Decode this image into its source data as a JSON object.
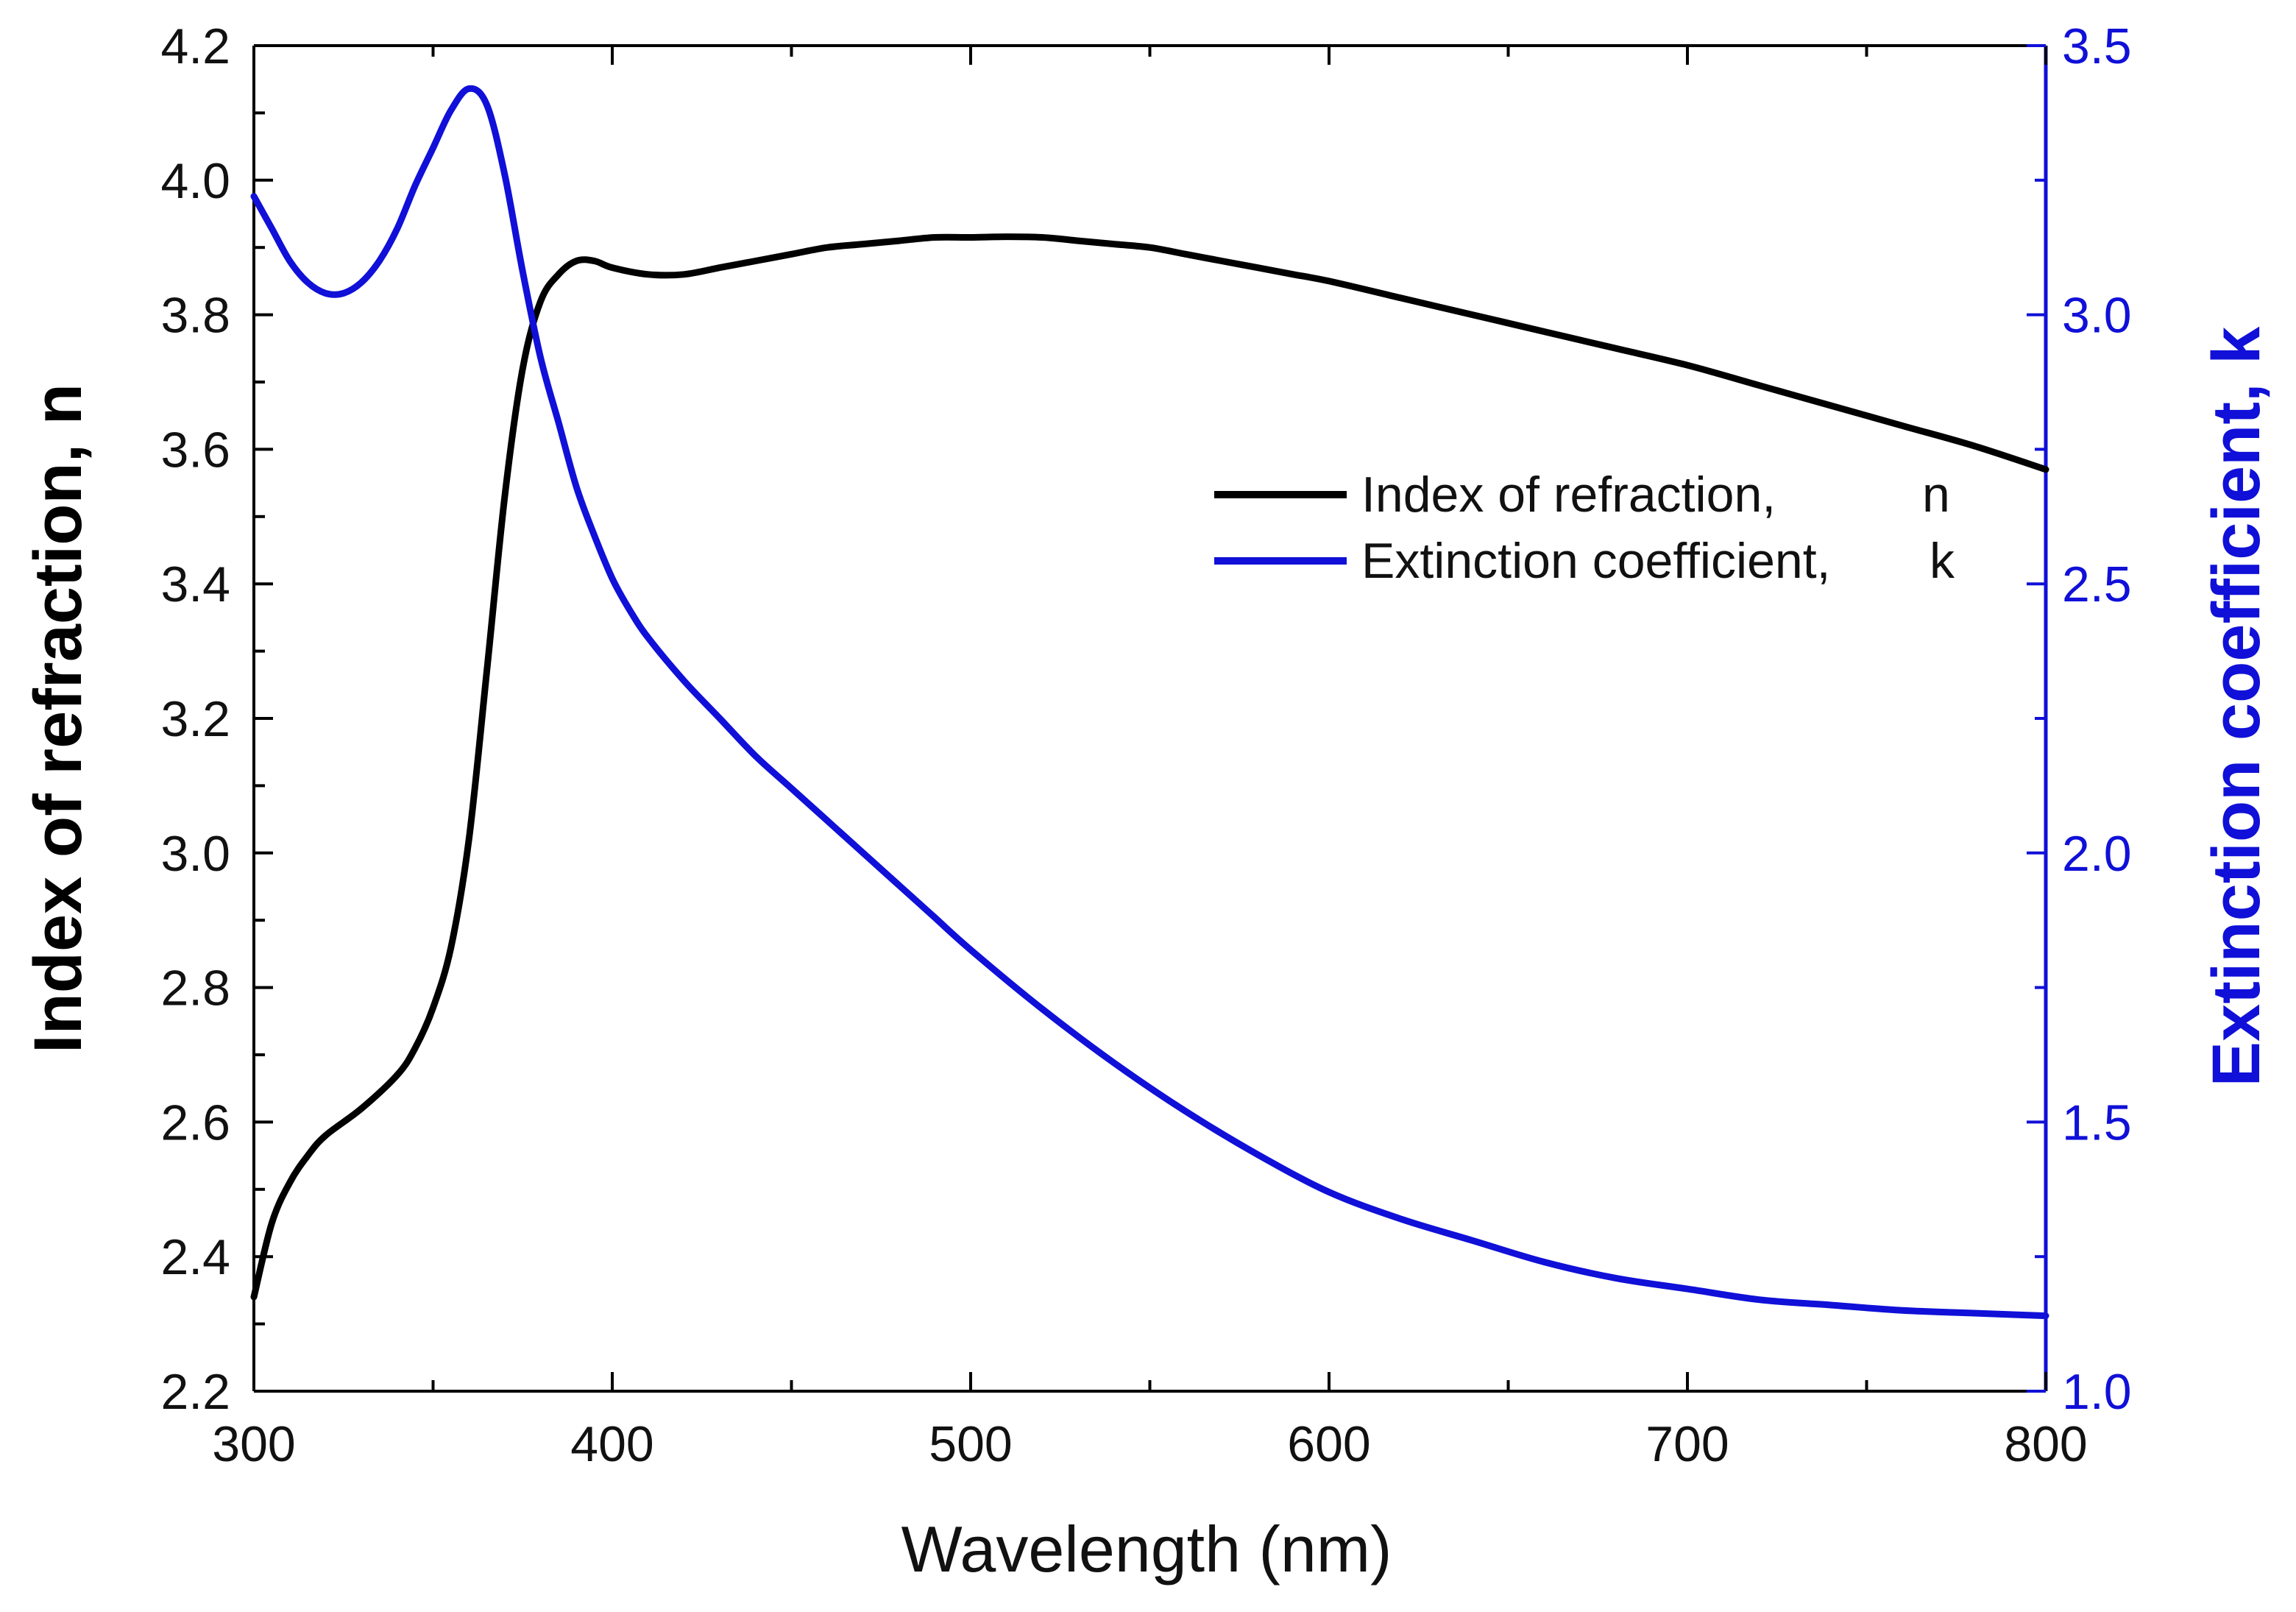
{
  "chart_data": {
    "type": "line",
    "title": "",
    "xlabel": "Wavelength (nm)",
    "ylabel": "Index of refraction, n",
    "y2label": "Extinction coefficient, k",
    "xlim": [
      300,
      800
    ],
    "ylim": [
      2.2,
      4.2
    ],
    "y2lim": [
      1.0,
      3.5
    ],
    "xticks": [
      "300",
      "400",
      "500",
      "600",
      "700",
      "800"
    ],
    "yticks": [
      "2.2",
      "2.4",
      "2.6",
      "2.8",
      "3.0",
      "3.2",
      "3.4",
      "3.6",
      "3.8",
      "4.0",
      "4.2"
    ],
    "y2ticks": [
      "1.0",
      "1.5",
      "2.0",
      "2.5",
      "3.0",
      "3.5"
    ],
    "grid": false,
    "legend_position": "upper-right",
    "colors": {
      "n": "#000000",
      "k": "#1010d8",
      "axis_right": "#1010d8"
    },
    "series": [
      {
        "id": "n",
        "axis": "left",
        "name": "Index of refraction,",
        "legend_symbol": "n",
        "x": [
          300,
          305,
          310,
          315,
          320,
          330,
          340,
          345,
          350,
          355,
          360,
          365,
          370,
          375,
          380,
          385,
          390,
          395,
          400,
          410,
          420,
          430,
          440,
          450,
          460,
          470,
          480,
          490,
          500,
          510,
          520,
          530,
          540,
          550,
          560,
          570,
          580,
          590,
          600,
          620,
          640,
          660,
          680,
          700,
          720,
          740,
          760,
          780,
          800
        ],
        "values": [
          2.34,
          2.45,
          2.51,
          2.55,
          2.58,
          2.62,
          2.67,
          2.71,
          2.77,
          2.86,
          3.02,
          3.27,
          3.53,
          3.72,
          3.82,
          3.86,
          3.88,
          3.88,
          3.87,
          3.86,
          3.86,
          3.87,
          3.88,
          3.89,
          3.9,
          3.905,
          3.91,
          3.915,
          3.915,
          3.916,
          3.915,
          3.91,
          3.905,
          3.9,
          3.89,
          3.88,
          3.87,
          3.86,
          3.85,
          3.825,
          3.8,
          3.775,
          3.75,
          3.725,
          3.695,
          3.665,
          3.635,
          3.605,
          3.57
        ]
      },
      {
        "id": "k",
        "axis": "right",
        "name": "Extinction coefficient,",
        "legend_symbol": "k",
        "x": [
          300,
          305,
          310,
          315,
          320,
          325,
          330,
          335,
          340,
          345,
          350,
          355,
          360,
          365,
          370,
          375,
          380,
          385,
          390,
          395,
          400,
          405,
          410,
          420,
          430,
          440,
          450,
          460,
          470,
          480,
          490,
          500,
          520,
          540,
          560,
          580,
          600,
          620,
          640,
          660,
          680,
          700,
          720,
          740,
          760,
          780,
          800
        ],
        "values": [
          3.22,
          3.16,
          3.1,
          3.06,
          3.04,
          3.04,
          3.06,
          3.1,
          3.16,
          3.24,
          3.31,
          3.38,
          3.42,
          3.39,
          3.26,
          3.08,
          2.92,
          2.8,
          2.68,
          2.59,
          2.51,
          2.45,
          2.4,
          2.32,
          2.25,
          2.18,
          2.12,
          2.06,
          2.0,
          1.94,
          1.88,
          1.82,
          1.71,
          1.61,
          1.52,
          1.44,
          1.37,
          1.32,
          1.28,
          1.24,
          1.21,
          1.19,
          1.17,
          1.16,
          1.15,
          1.145,
          1.14
        ]
      }
    ]
  }
}
